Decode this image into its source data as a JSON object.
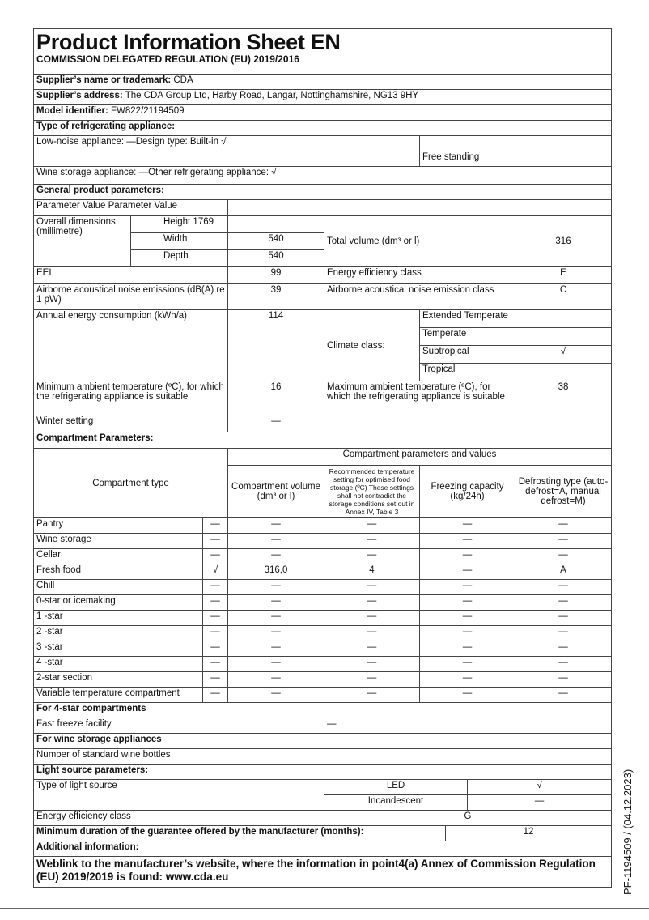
{
  "header": {
    "title": "Product Information Sheet  EN",
    "regulation": "COMMISSION DELEGATED REGULATION (EU) 2019/2016"
  },
  "supplier": {
    "name_label": "Supplier’s name or trademark:",
    "name": " CDA",
    "address_label": "Supplier’s address:",
    "address": " The CDA Group Ltd, Harby Road, Langar, Nottinghamshire, NG13 9HY",
    "model_label": "Model identifier:",
    "model": " FW822/21194509"
  },
  "type": {
    "heading": "Type of refrigerating appliance:",
    "low_noise": "Low-noise appliance: —Design type: Built-in √",
    "free_standing": "Free standing",
    "wine": "Wine storage appliance: —Other refrigerating appliance: √"
  },
  "general": {
    "heading": "General product parameters:",
    "param_row": "Parameter Value Parameter Value",
    "dims_label": "Overall dimensions (millimetre)",
    "height": "Height 1769",
    "width_label": "Width",
    "width": "540",
    "depth_label": "Depth",
    "depth": "540",
    "total_volume_label": "Total volume (dm³ or l)",
    "total_volume": "316",
    "eei_label": "EEI",
    "eei": "99",
    "eec_label": "Energy efficiency class",
    "eec": "E",
    "noise_label": "Airborne acoustical noise emissions (dB(A) re 1 pW)",
    "noise": "39",
    "noise_class_label": "Airborne acoustical noise emission class",
    "noise_class": "C",
    "annual_label": "Annual energy consumption (kWh/a)",
    "annual": "114",
    "climate_label": "Climate class:",
    "climate": [
      {
        "name": "Extended Temperate",
        "value": ""
      },
      {
        "name": "Temperate",
        "value": ""
      },
      {
        "name": "Subtropical",
        "value": "√"
      },
      {
        "name": "Tropical",
        "value": ""
      }
    ],
    "min_temp_label": "Minimum ambient temperature (ºC), for which the refrigerating appliance is suitable",
    "min_temp": "16",
    "max_temp_label": "Maximum ambient temperature (ºC), for which the refrigerating appliance is suitable",
    "max_temp": "38",
    "winter_label": "Winter setting",
    "winter": "—"
  },
  "compartments": {
    "heading": "Compartment Parameters:",
    "type_header": "Compartment type",
    "params_header": "Compartment parameters and values",
    "col_volume": "Compartment volume (dm³ or l)",
    "col_temp": "Recommended temperature setting for optimised food storage (ºC) These settings shall not contradict the storage conditions set out in Annex IV, Table 3",
    "col_freezing": "Freezing capacity (kg/24h)",
    "col_defrost": "Defrosting type (auto-defrost=A, manual defrost=M)",
    "rows": [
      {
        "name": "Pantry",
        "present": "—",
        "volume": "—",
        "temp": "—",
        "freezing": "—",
        "defrost": "—"
      },
      {
        "name": "Wine storage",
        "present": "—",
        "volume": "—",
        "temp": "—",
        "freezing": "—",
        "defrost": "—"
      },
      {
        "name": "Cellar",
        "present": "—",
        "volume": "—",
        "temp": "—",
        "freezing": "—",
        "defrost": "—"
      },
      {
        "name": "Fresh food",
        "present": "√",
        "volume": "316,0",
        "temp": "4",
        "freezing": "—",
        "defrost": "A"
      },
      {
        "name": "Chill",
        "present": "—",
        "volume": "—",
        "temp": "—",
        "freezing": "—",
        "defrost": "—"
      },
      {
        "name": "0-star or icemaking",
        "present": "—",
        "volume": "—",
        "temp": "—",
        "freezing": "—",
        "defrost": "—"
      },
      {
        "name": "1 -star",
        "present": "—",
        "volume": "—",
        "temp": "—",
        "freezing": "—",
        "defrost": "—"
      },
      {
        "name": "2 -star",
        "present": "—",
        "volume": "—",
        "temp": "—",
        "freezing": "—",
        "defrost": "—"
      },
      {
        "name": "3 -star",
        "present": "—",
        "volume": "—",
        "temp": "—",
        "freezing": "—",
        "defrost": "—"
      },
      {
        "name": "4 -star",
        "present": "—",
        "volume": "—",
        "temp": "—",
        "freezing": "—",
        "defrost": "—"
      },
      {
        "name": "2-star section",
        "present": "—",
        "volume": "—",
        "temp": "—",
        "freezing": "—",
        "defrost": "—"
      },
      {
        "name": "Variable temperature compartment",
        "present": "—",
        "volume": "—",
        "temp": "—",
        "freezing": "—",
        "defrost": "—"
      }
    ]
  },
  "four_star": {
    "heading": "For 4-star compartments",
    "fast_freeze_label": "Fast freeze facility",
    "fast_freeze": "—"
  },
  "wine_storage": {
    "heading": "For wine storage appliances",
    "bottles_label": "Number of standard wine bottles",
    "bottles": ""
  },
  "light": {
    "heading": "Light source parameters:",
    "type_label": "Type of light source",
    "led_label": "LED",
    "led": "√",
    "incandescent_label": "Incandescent",
    "incandescent": "—",
    "eec_label": "Energy efficiency class",
    "eec": "G"
  },
  "guarantee": {
    "label": "Minimum duration of the guarantee offered by the manufacturer (months):",
    "value": "12"
  },
  "additional": {
    "heading": "Additional information:",
    "weblink": "Weblink to the manufacturer’s website, where the information in point4(a) Annex of Commission Regulation (EU) 2019/2019 is found: www.cda.eu"
  },
  "footer": {
    "doc_ref": "PF-1194509 / (04.12.2023)"
  }
}
